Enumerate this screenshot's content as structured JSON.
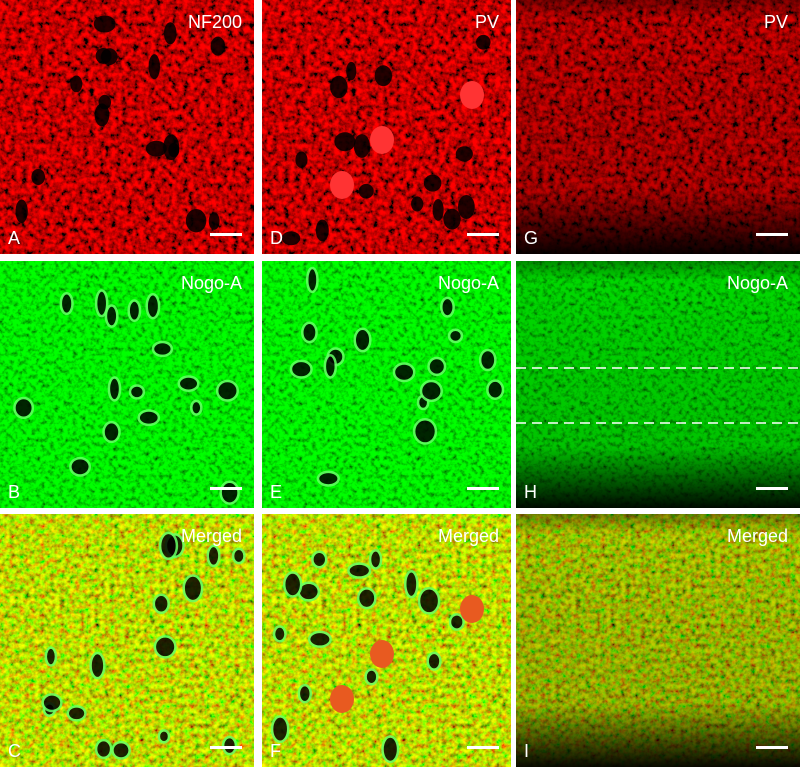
{
  "panels": [
    {
      "label": "A",
      "title": "NF200"
    },
    {
      "label": "D",
      "title": "PV"
    },
    {
      "label": "G",
      "title": "PV"
    },
    {
      "label": "B",
      "title": "Nogo-A"
    },
    {
      "label": "E",
      "title": "Nogo-A"
    },
    {
      "label": "H",
      "title": "Nogo-A"
    },
    {
      "label": "C",
      "title": "Merged"
    },
    {
      "label": "F",
      "title": "Merged"
    },
    {
      "label": "I",
      "title": "Merged"
    }
  ]
}
